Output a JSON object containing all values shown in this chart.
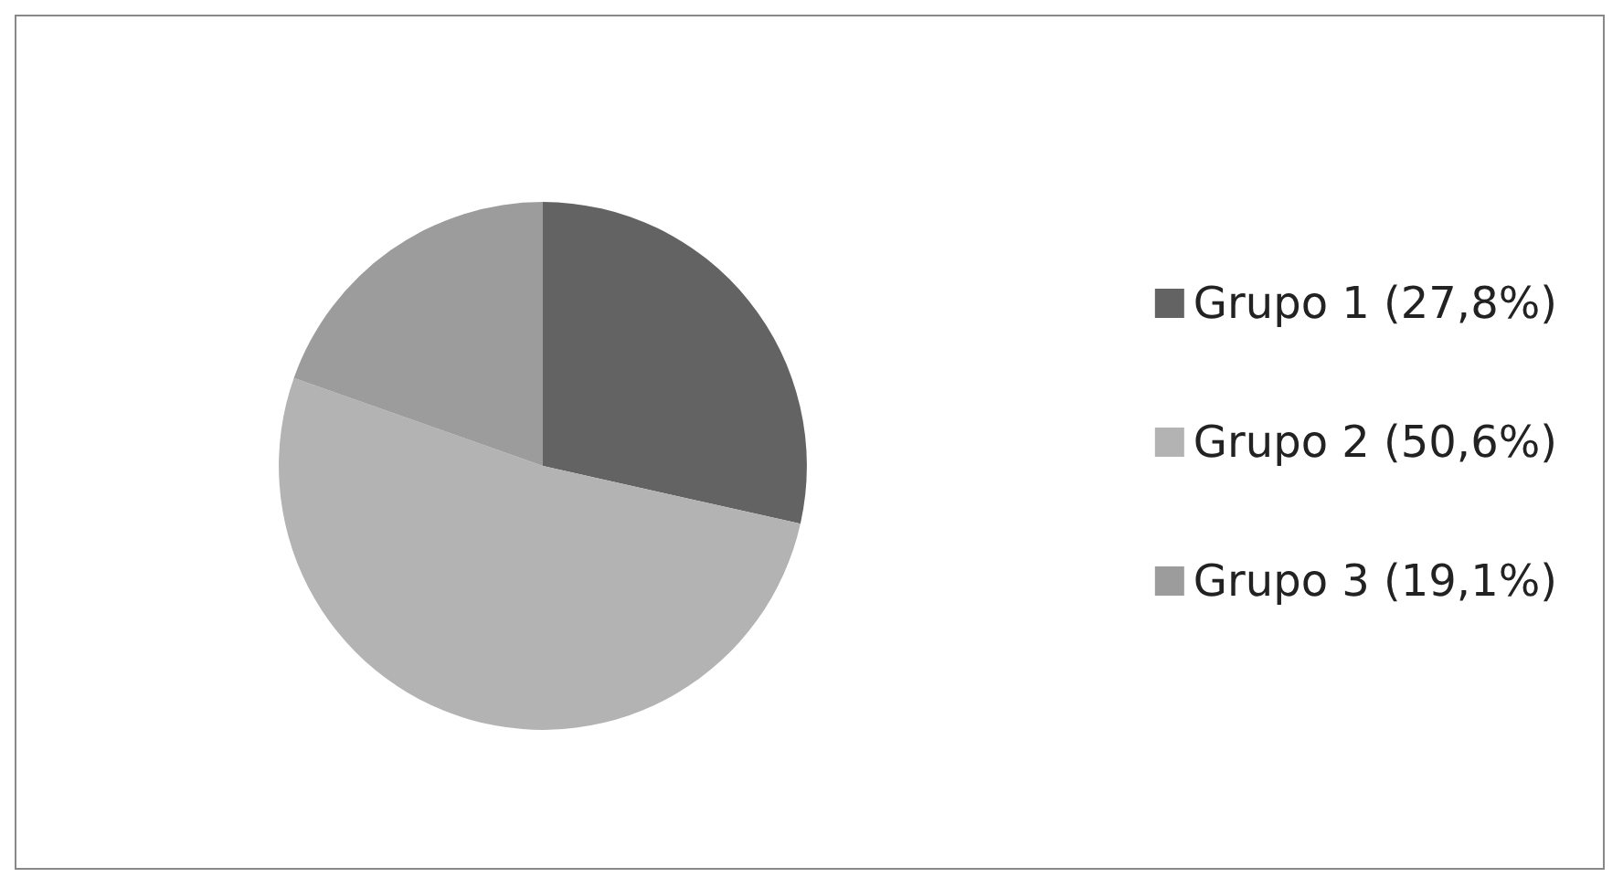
{
  "chart_data": {
    "type": "pie",
    "categories": [
      "Grupo 1 (27,8%)",
      "Grupo 2 (50,6%)",
      "Grupo 3 (19,1%)"
    ],
    "values": [
      27.8,
      50.6,
      19.1
    ],
    "colors": [
      "#636363",
      "#b3b3b3",
      "#9c9c9c"
    ],
    "legend": "right"
  }
}
